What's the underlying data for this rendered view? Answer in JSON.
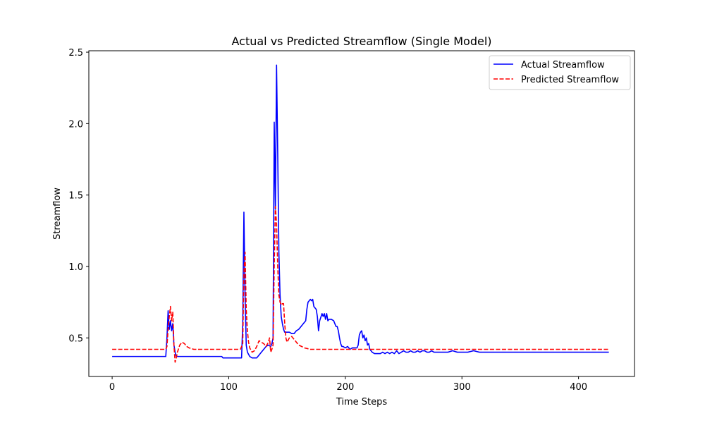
{
  "chart_data": {
    "type": "line",
    "title": "Actual vs Predicted Streamflow (Single Model)",
    "xlabel": "Time Steps",
    "ylabel": "Streamflow",
    "xlim": [
      -20,
      448
    ],
    "ylim": [
      0.23,
      2.51
    ],
    "xticks": [
      0,
      100,
      200,
      300,
      400
    ],
    "yticks": [
      0.5,
      1.0,
      1.5,
      2.0,
      2.5
    ],
    "xtick_labels": [
      "0",
      "100",
      "200",
      "300",
      "400"
    ],
    "ytick_labels": [
      "0.5",
      "1.0",
      "1.5",
      "2.0",
      "2.5"
    ],
    "grid": false,
    "legend_position": "top-right",
    "series": [
      {
        "name": "Actual Streamflow",
        "color": "#0000ff",
        "style": "solid",
        "points": [
          [
            0,
            0.37
          ],
          [
            10,
            0.37
          ],
          [
            20,
            0.37
          ],
          [
            30,
            0.37
          ],
          [
            40,
            0.37
          ],
          [
            46,
            0.37
          ],
          [
            47,
            0.5
          ],
          [
            48,
            0.69
          ],
          [
            49,
            0.56
          ],
          [
            50,
            0.62
          ],
          [
            51,
            0.55
          ],
          [
            52,
            0.6
          ],
          [
            53,
            0.45
          ],
          [
            54,
            0.4
          ],
          [
            55,
            0.37
          ],
          [
            60,
            0.37
          ],
          [
            70,
            0.37
          ],
          [
            80,
            0.37
          ],
          [
            94,
            0.37
          ],
          [
            95,
            0.36
          ],
          [
            100,
            0.36
          ],
          [
            105,
            0.36
          ],
          [
            111,
            0.36
          ],
          [
            112,
            0.6
          ],
          [
            113,
            1.38
          ],
          [
            114,
            0.8
          ],
          [
            115,
            0.45
          ],
          [
            116,
            0.4
          ],
          [
            118,
            0.37
          ],
          [
            120,
            0.36
          ],
          [
            122,
            0.36
          ],
          [
            124,
            0.36
          ],
          [
            126,
            0.38
          ],
          [
            128,
            0.4
          ],
          [
            130,
            0.42
          ],
          [
            132,
            0.44
          ],
          [
            134,
            0.45
          ],
          [
            136,
            0.44
          ],
          [
            137,
            0.46
          ],
          [
            138,
            0.5
          ],
          [
            139,
            2.01
          ],
          [
            140,
            1.4
          ],
          [
            141,
            2.41
          ],
          [
            142,
            1.8
          ],
          [
            143,
            1.1
          ],
          [
            144,
            0.8
          ],
          [
            145,
            0.65
          ],
          [
            146,
            0.6
          ],
          [
            147,
            0.56
          ],
          [
            148,
            0.54
          ],
          [
            150,
            0.54
          ],
          [
            152,
            0.54
          ],
          [
            154,
            0.53
          ],
          [
            156,
            0.53
          ],
          [
            158,
            0.55
          ],
          [
            160,
            0.56
          ],
          [
            162,
            0.58
          ],
          [
            164,
            0.6
          ],
          [
            166,
            0.62
          ],
          [
            167,
            0.7
          ],
          [
            168,
            0.75
          ],
          [
            170,
            0.77
          ],
          [
            171,
            0.76
          ],
          [
            172,
            0.77
          ],
          [
            173,
            0.72
          ],
          [
            175,
            0.7
          ],
          [
            176,
            0.65
          ],
          [
            177,
            0.55
          ],
          [
            178,
            0.62
          ],
          [
            180,
            0.67
          ],
          [
            181,
            0.65
          ],
          [
            182,
            0.67
          ],
          [
            183,
            0.63
          ],
          [
            184,
            0.67
          ],
          [
            185,
            0.62
          ],
          [
            186,
            0.63
          ],
          [
            188,
            0.63
          ],
          [
            190,
            0.62
          ],
          [
            191,
            0.6
          ],
          [
            192,
            0.58
          ],
          [
            193,
            0.58
          ],
          [
            194,
            0.55
          ],
          [
            195,
            0.5
          ],
          [
            196,
            0.46
          ],
          [
            197,
            0.44
          ],
          [
            198,
            0.44
          ],
          [
            200,
            0.43
          ],
          [
            202,
            0.44
          ],
          [
            204,
            0.42
          ],
          [
            206,
            0.43
          ],
          [
            208,
            0.43
          ],
          [
            210,
            0.43
          ],
          [
            211,
            0.45
          ],
          [
            212,
            0.52
          ],
          [
            213,
            0.54
          ],
          [
            214,
            0.55
          ],
          [
            215,
            0.5
          ],
          [
            216,
            0.52
          ],
          [
            217,
            0.48
          ],
          [
            218,
            0.5
          ],
          [
            219,
            0.45
          ],
          [
            220,
            0.46
          ],
          [
            221,
            0.42
          ],
          [
            222,
            0.41
          ],
          [
            223,
            0.4
          ],
          [
            225,
            0.39
          ],
          [
            228,
            0.39
          ],
          [
            230,
            0.39
          ],
          [
            232,
            0.4
          ],
          [
            234,
            0.39
          ],
          [
            236,
            0.4
          ],
          [
            238,
            0.39
          ],
          [
            240,
            0.4
          ],
          [
            242,
            0.39
          ],
          [
            244,
            0.41
          ],
          [
            246,
            0.39
          ],
          [
            248,
            0.4
          ],
          [
            250,
            0.41
          ],
          [
            252,
            0.4
          ],
          [
            254,
            0.4
          ],
          [
            256,
            0.41
          ],
          [
            258,
            0.4
          ],
          [
            260,
            0.4
          ],
          [
            262,
            0.41
          ],
          [
            264,
            0.4
          ],
          [
            266,
            0.41
          ],
          [
            268,
            0.41
          ],
          [
            270,
            0.4
          ],
          [
            272,
            0.4
          ],
          [
            274,
            0.41
          ],
          [
            276,
            0.4
          ],
          [
            280,
            0.4
          ],
          [
            284,
            0.4
          ],
          [
            288,
            0.4
          ],
          [
            292,
            0.41
          ],
          [
            296,
            0.4
          ],
          [
            300,
            0.4
          ],
          [
            305,
            0.4
          ],
          [
            310,
            0.41
          ],
          [
            315,
            0.4
          ],
          [
            320,
            0.4
          ],
          [
            330,
            0.4
          ],
          [
            340,
            0.4
          ],
          [
            350,
            0.4
          ],
          [
            360,
            0.4
          ],
          [
            370,
            0.4
          ],
          [
            380,
            0.4
          ],
          [
            390,
            0.4
          ],
          [
            400,
            0.4
          ],
          [
            410,
            0.4
          ],
          [
            420,
            0.4
          ],
          [
            426,
            0.4
          ]
        ]
      },
      {
        "name": "Predicted Streamflow",
        "color": "#ff0000",
        "style": "dashed",
        "points": [
          [
            0,
            0.42
          ],
          [
            10,
            0.42
          ],
          [
            20,
            0.42
          ],
          [
            30,
            0.42
          ],
          [
            40,
            0.42
          ],
          [
            45,
            0.42
          ],
          [
            46,
            0.42
          ],
          [
            47,
            0.44
          ],
          [
            48,
            0.56
          ],
          [
            49,
            0.65
          ],
          [
            50,
            0.72
          ],
          [
            51,
            0.62
          ],
          [
            52,
            0.68
          ],
          [
            53,
            0.45
          ],
          [
            54,
            0.33
          ],
          [
            55,
            0.36
          ],
          [
            56,
            0.4
          ],
          [
            58,
            0.45
          ],
          [
            60,
            0.47
          ],
          [
            62,
            0.46
          ],
          [
            64,
            0.44
          ],
          [
            66,
            0.43
          ],
          [
            70,
            0.42
          ],
          [
            80,
            0.42
          ],
          [
            90,
            0.42
          ],
          [
            100,
            0.42
          ],
          [
            110,
            0.42
          ],
          [
            112,
            0.46
          ],
          [
            113,
            0.95
          ],
          [
            114,
            1.1
          ],
          [
            115,
            0.7
          ],
          [
            116,
            0.55
          ],
          [
            117,
            0.47
          ],
          [
            118,
            0.43
          ],
          [
            120,
            0.4
          ],
          [
            122,
            0.41
          ],
          [
            124,
            0.44
          ],
          [
            126,
            0.48
          ],
          [
            128,
            0.47
          ],
          [
            130,
            0.46
          ],
          [
            132,
            0.44
          ],
          [
            134,
            0.47
          ],
          [
            135,
            0.5
          ],
          [
            136,
            0.4
          ],
          [
            137,
            0.42
          ],
          [
            138,
            0.45
          ],
          [
            139,
            1.0
          ],
          [
            140,
            1.42
          ],
          [
            141,
            1.3
          ],
          [
            142,
            1.0
          ],
          [
            143,
            0.8
          ],
          [
            144,
            0.75
          ],
          [
            145,
            0.73
          ],
          [
            146,
            0.74
          ],
          [
            147,
            0.74
          ],
          [
            148,
            0.6
          ],
          [
            149,
            0.5
          ],
          [
            150,
            0.47
          ],
          [
            152,
            0.5
          ],
          [
            154,
            0.51
          ],
          [
            156,
            0.49
          ],
          [
            158,
            0.47
          ],
          [
            160,
            0.45
          ],
          [
            165,
            0.43
          ],
          [
            170,
            0.42
          ],
          [
            180,
            0.42
          ],
          [
            200,
            0.42
          ],
          [
            220,
            0.42
          ],
          [
            240,
            0.42
          ],
          [
            260,
            0.42
          ],
          [
            280,
            0.42
          ],
          [
            300,
            0.42
          ],
          [
            320,
            0.42
          ],
          [
            340,
            0.42
          ],
          [
            360,
            0.42
          ],
          [
            380,
            0.42
          ],
          [
            400,
            0.42
          ],
          [
            420,
            0.42
          ],
          [
            426,
            0.42
          ]
        ]
      }
    ]
  }
}
